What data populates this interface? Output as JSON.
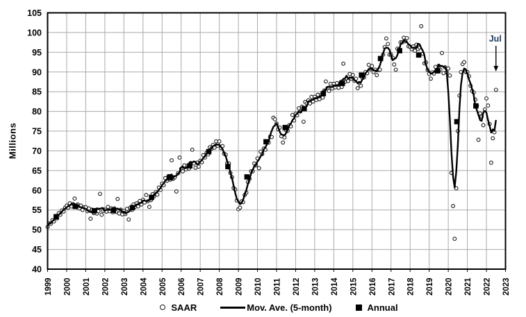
{
  "figure": {
    "background": "#ffffff"
  },
  "colors": {
    "grid": "#a9a9a9",
    "border": "#000000",
    "line": "#000000",
    "scatter_stroke": "#1a1a1a",
    "scatter_fill": "#ffffff",
    "annual_square": "#000000",
    "tick_text": "#000000",
    "annotation_text": "#1f3a63",
    "arrow": "#000000"
  },
  "legend": {
    "saar_label": "SAAR",
    "movavg_label": "Mov. Ave. (5-month)",
    "annual_label": "Annual"
  },
  "chart_data": {
    "type": "line+scatter",
    "title": "",
    "xlabel": "",
    "ylabel": "Millions",
    "ylim": [
      40,
      105
    ],
    "ytick_step": 5,
    "grid": true,
    "legend_position": "bottom",
    "x_tick_years": [
      1999,
      2000,
      2001,
      2002,
      2003,
      2004,
      2005,
      2006,
      2007,
      2008,
      2009,
      2010,
      2011,
      2012,
      2013,
      2014,
      2015,
      2016,
      2017,
      2018,
      2019,
      2020,
      2021,
      2022,
      2023
    ],
    "series_names": [
      "SAAR",
      "Mov. Ave. (5-month)",
      "Annual"
    ],
    "saar_monthly_by_year": {
      "1999": [
        50.7,
        51.6,
        51.5,
        52.4,
        52.1,
        53.3,
        52.9,
        54.2,
        53.8,
        54.9,
        54.6,
        55.6
      ],
      "2000": [
        56.1,
        55.6,
        56.7,
        55.9,
        56.5,
        57.9,
        55.7,
        56.4,
        55.4,
        56.1,
        55.0,
        55.7
      ],
      "2001": [
        55.7,
        54.7,
        55.4,
        52.8,
        55.1,
        54.2,
        55.0,
        54.1,
        54.7,
        59.1,
        53.8,
        54.8
      ],
      "2002": [
        55.1,
        54.6,
        55.8,
        54.7,
        55.4,
        54.4,
        55.4,
        54.5,
        57.8,
        54.1,
        55.1,
        53.9
      ],
      "2003": [
        54.8,
        54.0,
        55.3,
        52.6,
        55.6,
        55.0,
        56.4,
        55.8,
        56.7,
        55.9,
        57.3,
        56.4
      ],
      "2004": [
        57.6,
        56.9,
        58.8,
        57.2,
        55.8,
        57.5,
        59.0,
        58.5,
        59.5,
        58.9,
        60.7,
        60.1
      ],
      "2005": [
        61.7,
        61.3,
        63.1,
        62.4,
        63.6,
        62.7,
        67.6,
        62.9,
        63.3,
        59.7,
        64.3,
        68.3
      ],
      "2006": [
        65.4,
        64.8,
        66.3,
        65.3,
        66.2,
        65.5,
        66.9,
        70.3,
        66.8,
        65.7,
        67.0,
        66.0
      ],
      "2007": [
        67.5,
        67.1,
        68.9,
        68.3,
        69.5,
        69.1,
        70.9,
        70.5,
        71.5,
        70.8,
        72.4,
        71.3
      ],
      "2008": [
        72.4,
        70.7,
        71.2,
        69.3,
        69.0,
        66.9,
        66.8,
        64.4,
        63.3,
        60.6,
        60.2,
        57.4
      ],
      "2009": [
        55.2,
        55.6,
        57.2,
        57.0,
        58.8,
        59.4,
        62.1,
        62.9,
        64.8,
        64.8,
        66.8,
        66.3
      ],
      "2010": [
        68.1,
        65.6,
        69.8,
        69.2,
        70.6,
        70.3,
        72.2,
        72.1,
        73.6,
        73.5,
        78.4,
        78.0
      ],
      "2011": [
        76.9,
        75.5,
        75.9,
        73.7,
        72.1,
        73.4,
        75.2,
        75.1,
        76.5,
        76.2,
        79.1,
        77.7
      ],
      "2012": [
        79.4,
        79.0,
        80.8,
        80.0,
        81.2,
        77.4,
        82.4,
        82.0,
        82.8,
        82.0,
        83.7,
        82.5
      ],
      "2013": [
        83.7,
        82.9,
        84.2,
        83.1,
        84.2,
        83.5,
        85.3,
        87.6,
        85.9,
        85.2,
        87.0,
        85.8
      ],
      "2014": [
        87.0,
        86.1,
        87.2,
        86.0,
        87.0,
        86.2,
        92.1,
        87.5,
        88.4,
        87.7,
        89.5,
        88.3
      ],
      "2015": [
        89.2,
        87.8,
        88.3,
        85.9,
        87.2,
        86.5,
        88.5,
        88.6,
        90.0,
        89.7,
        91.8,
        90.7
      ],
      "2016": [
        91.5,
        90.0,
        90.6,
        89.2,
        90.5,
        90.6,
        93.5,
        94.4,
        96.3,
        98.5,
        97.1,
        94.4
      ],
      "2017": [
        94.4,
        93.6,
        91.9,
        90.6,
        95.9,
        95.5,
        97.5,
        97.5,
        98.7,
        97.8,
        98.6,
        96.5
      ],
      "2018": [
        96.4,
        95.8,
        96.5,
        95.4,
        96.9,
        95.8,
        96.2,
        101.6,
        94.6,
        92.2,
        92.4,
        90.5
      ],
      "2019": [
        89.5,
        88.3,
        89.9,
        89.6,
        91.3,
        90.5,
        91.6,
        90.6,
        94.8,
        89.7,
        91.2,
        89.9
      ],
      "2020": [
        90.9,
        89.1,
        64.4,
        56.0,
        47.7,
        60.5,
        75.0,
        84.0,
        90.0,
        92.0,
        92.5,
        90.0
      ],
      "2021": [
        90.0,
        88.9,
        86.5,
        85.2,
        84.8,
        83.0,
        81.5,
        72.8,
        79.5,
        78.7,
        76.5,
        80.5
      ],
      "2022": [
        83.3,
        81.5,
        76.8,
        67.0,
        73.2,
        74.7,
        85.5
      ]
    },
    "moving_average": {
      "window_months": 5,
      "centered": true,
      "derived_from": "SAAR"
    },
    "annual_by_year": {
      "1999": 53.3,
      "2000": 55.9,
      "2001": 54.8,
      "2002": 54.9,
      "2003": 55.6,
      "2004": 58.2,
      "2005": 63.2,
      "2006": 66.2,
      "2007": 69.8,
      "2008": 66.0,
      "2009": 63.4,
      "2010": 72.3,
      "2011": 75.9,
      "2012": 80.7,
      "2013": 84.5,
      "2014": 87.1,
      "2015": 89.2,
      "2016": 93.4,
      "2017": 95.4,
      "2018": 94.3,
      "2019": 90.3,
      "2020": 77.4,
      "2021": 81.4
    },
    "annotation": {
      "label": "Jul",
      "month": "2022-07",
      "points_to_value": 85.5
    }
  }
}
